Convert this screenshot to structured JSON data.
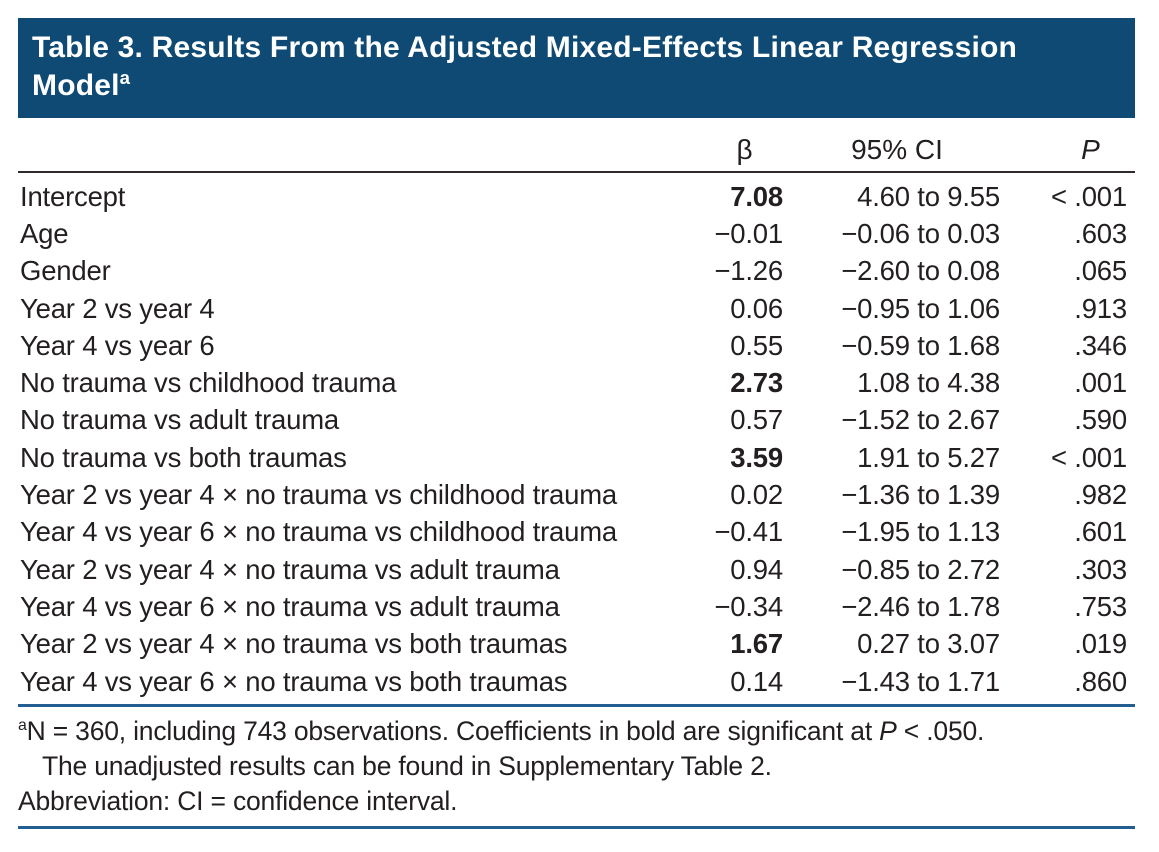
{
  "title": {
    "text": "Table 3. Results From the Adjusted Mixed-Effects Linear Regression Model",
    "sup": "a"
  },
  "table": {
    "columns": {
      "beta": "β",
      "ci": "95% CI",
      "p": "P"
    },
    "rows": [
      {
        "label": "Intercept",
        "beta": "7.08",
        "ci": "4.60 to 9.55",
        "p": "< .001",
        "bold": true
      },
      {
        "label": "Age",
        "beta": "−0.01",
        "ci": "−0.06 to 0.03",
        "p": ".603",
        "bold": false
      },
      {
        "label": "Gender",
        "beta": "−1.26",
        "ci": "−2.60 to 0.08",
        "p": ".065",
        "bold": false
      },
      {
        "label": "Year 2 vs year 4",
        "beta": "0.06",
        "ci": "−0.95 to 1.06",
        "p": ".913",
        "bold": false
      },
      {
        "label": "Year 4 vs year 6",
        "beta": "0.55",
        "ci": "−0.59 to 1.68",
        "p": ".346",
        "bold": false
      },
      {
        "label": "No trauma vs childhood trauma",
        "beta": "2.73",
        "ci": "1.08 to 4.38",
        "p": ".001",
        "bold": true
      },
      {
        "label": "No trauma vs adult trauma",
        "beta": "0.57",
        "ci": "−1.52 to 2.67",
        "p": ".590",
        "bold": false
      },
      {
        "label": "No trauma vs both traumas",
        "beta": "3.59",
        "ci": "1.91 to 5.27",
        "p": "< .001",
        "bold": true
      },
      {
        "label": "Year 2 vs year 4 × no trauma vs childhood trauma",
        "beta": "0.02",
        "ci": "−1.36 to 1.39",
        "p": ".982",
        "bold": false
      },
      {
        "label": "Year 4 vs year 6 × no trauma vs childhood trauma",
        "beta": "−0.41",
        "ci": "−1.95 to 1.13",
        "p": ".601",
        "bold": false
      },
      {
        "label": "Year 2 vs year 4 × no trauma vs adult trauma",
        "beta": "0.94",
        "ci": "−0.85 to 2.72",
        "p": ".303",
        "bold": false
      },
      {
        "label": "Year 4 vs year 6 × no trauma vs adult trauma",
        "beta": "−0.34",
        "ci": "−2.46 to 1.78",
        "p": ".753",
        "bold": false
      },
      {
        "label": "Year 2 vs year 4 × no trauma vs both traumas",
        "beta": "1.67",
        "ci": "0.27 to 3.07",
        "p": ".019",
        "bold": true
      },
      {
        "label": "Year 4 vs year 6 × no trauma vs both traumas",
        "beta": "0.14",
        "ci": "−1.43 to 1.71",
        "p": ".860",
        "bold": false
      }
    ]
  },
  "footnotes": {
    "marker": "a",
    "note_text_1": "N = 360, including 743 observations. Coefficients in bold are significant at ",
    "note_italic_p": "P",
    "note_text_2": " < .050.",
    "note_line2": "The unadjusted results can be found in Supplementary Table 2.",
    "abbreviation": "Abbreviation: CI = confidence interval."
  },
  "colors": {
    "title_bar": "#0e4a73",
    "rule_blue": "#235e93",
    "header_rule": "#2f2b2c",
    "text": "#231f20",
    "title_text": "#ffffff"
  }
}
